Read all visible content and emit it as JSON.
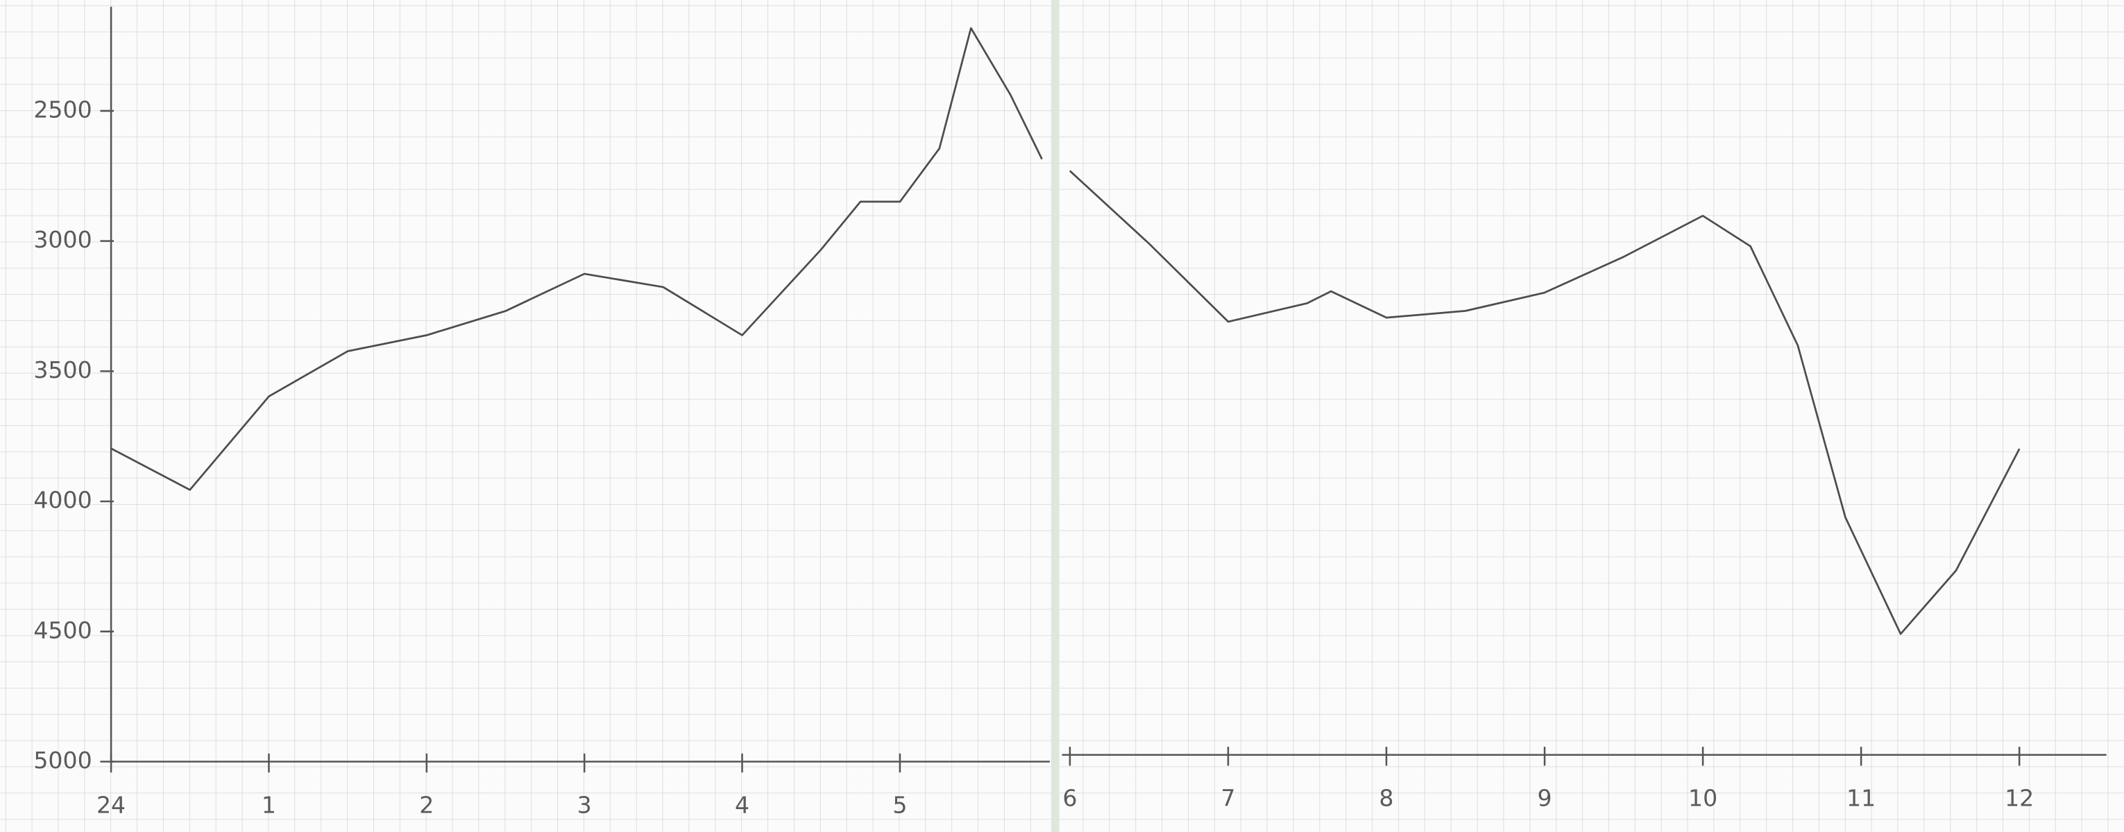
{
  "chart_data": [
    {
      "type": "line",
      "color": "#4d4d4d",
      "x": [
        0,
        0.5,
        1,
        1.5,
        2,
        2.5,
        3,
        3.5,
        4,
        4.5,
        4.75,
        5,
        5.25,
        5.45,
        5.7,
        5.9
      ],
      "values": [
        3797,
        3956,
        3597,
        3423,
        3362,
        3269,
        3126,
        3177,
        3362,
        3033,
        2849,
        2849,
        2644,
        2182,
        2438,
        2685
      ],
      "xlim": [
        0,
        5.95
      ],
      "xticks": [
        {
          "value": 0,
          "label": "24"
        },
        1,
        2,
        3,
        4,
        5
      ],
      "ylim": [
        5000,
        2100
      ],
      "yticks": [
        2500,
        3000,
        3500,
        4000,
        4500,
        5000
      ]
    },
    {
      "type": "line",
      "color": "#4d4d4d",
      "x": [
        6,
        6.5,
        7,
        7.5,
        7.65,
        8,
        8.5,
        9,
        9.5,
        10,
        10.3,
        10.6,
        10.9,
        11.25,
        11.6,
        12
      ],
      "values": [
        2736,
        3018,
        3321,
        3249,
        3203,
        3305,
        3279,
        3208,
        3069,
        2910,
        3028,
        3413,
        4079,
        4531,
        4285,
        3813
      ],
      "xlim": [
        5.95,
        12.55
      ],
      "xticks": [
        6,
        7,
        8,
        9,
        10,
        11,
        12
      ],
      "ylim": [
        5000,
        2100
      ]
    }
  ]
}
